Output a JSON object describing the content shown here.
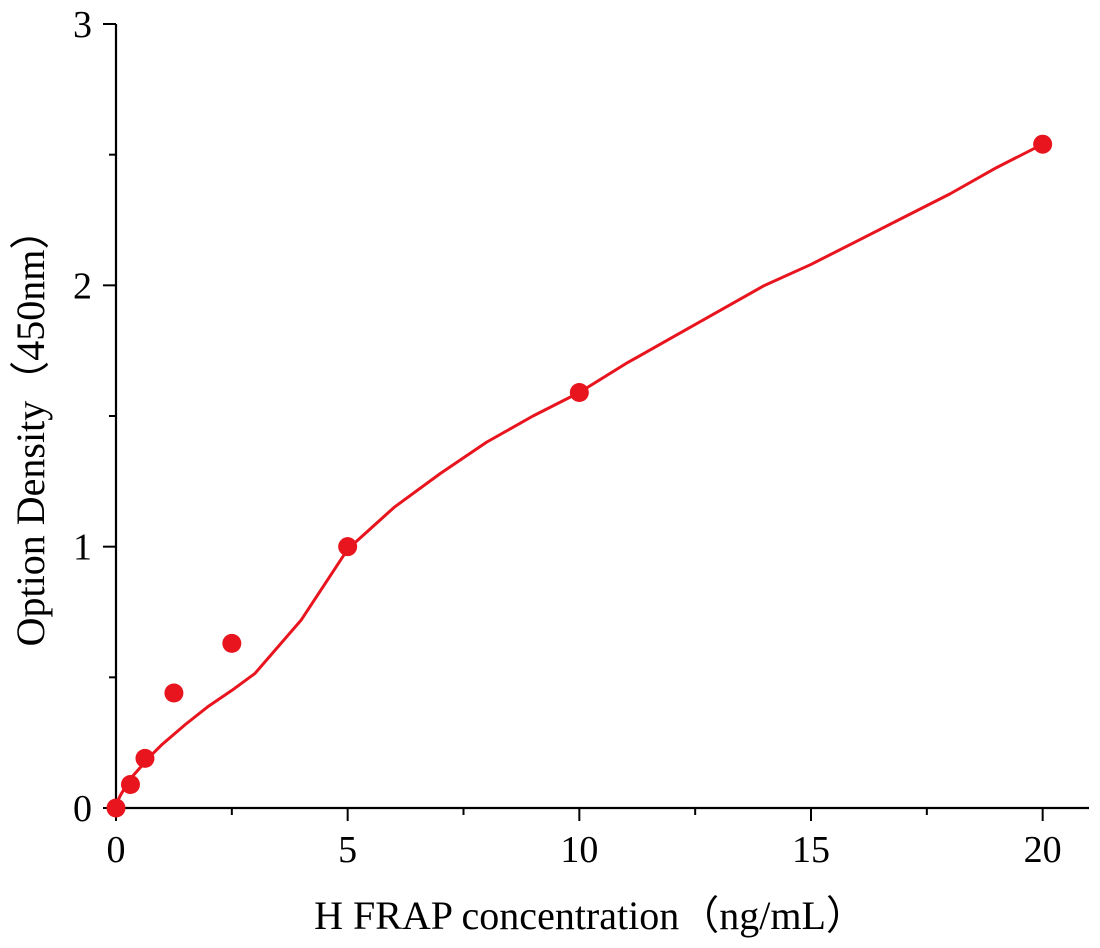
{
  "chart_data": {
    "type": "scatter",
    "title": "",
    "xlabel": "H FRAP  concentration（ng/mL）",
    "ylabel": "Option Density（450nm）",
    "xlim": [
      0,
      21
    ],
    "ylim": [
      0,
      3
    ],
    "x_major_ticks": [
      0,
      5,
      10,
      15,
      20
    ],
    "x_minor_ticks": [
      2.5,
      7.5,
      12.5,
      17.5
    ],
    "y_major_ticks": [
      0,
      1,
      2,
      3
    ],
    "y_minor_ticks": [
      0.5,
      1.5,
      2.5
    ],
    "x_tick_labels": [
      "0",
      "5",
      "10",
      "15",
      "20"
    ],
    "y_tick_labels": [
      "0",
      "1",
      "2",
      "3"
    ],
    "grid": false,
    "legend": "none",
    "series": [
      {
        "x": [
          0,
          0.3125,
          0.625,
          1.25,
          2.5,
          5,
          10,
          20
        ],
        "y": [
          0.0,
          0.09,
          0.19,
          0.44,
          0.63,
          1.0,
          1.59,
          2.54
        ],
        "color": "#e8141e"
      }
    ],
    "fit_curve": {
      "color": "#e8141e",
      "x": [
        0,
        0.05,
        0.1,
        0.2,
        0.35,
        0.5,
        0.75,
        1,
        1.5,
        2,
        2.5,
        3,
        4,
        5,
        6,
        7,
        8,
        9,
        10,
        11,
        12,
        13,
        14,
        15,
        16,
        17,
        18,
        19,
        20
      ],
      "y": [
        0.0,
        0.031,
        0.05,
        0.08,
        0.12,
        0.15,
        0.2,
        0.244,
        0.32,
        0.39,
        0.45,
        0.515,
        0.72,
        0.99,
        1.15,
        1.28,
        1.4,
        1.5,
        1.59,
        1.7,
        1.8,
        1.9,
        2.0,
        2.08,
        2.17,
        2.26,
        2.35,
        2.45,
        2.54
      ]
    }
  }
}
